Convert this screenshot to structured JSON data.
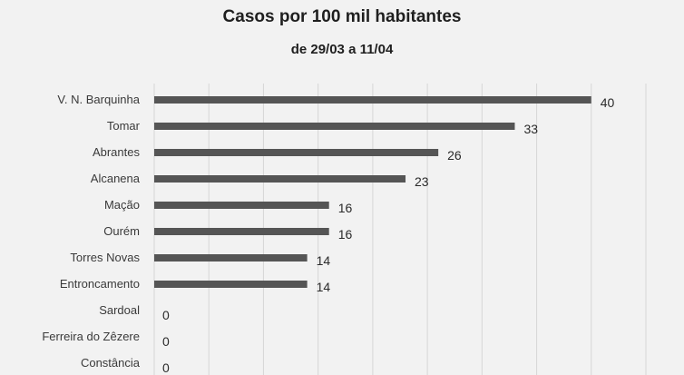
{
  "chart_data": {
    "type": "bar",
    "orientation": "horizontal",
    "title": "Casos por 100 mil habitantes",
    "subtitle": "de 29/03 a 11/04",
    "categories": [
      "V. N. Barquinha",
      "Tomar",
      "Abrantes",
      "Alcanena",
      "Mação",
      "Ourém",
      "Torres Novas",
      "Entroncamento",
      "Sardoal",
      "Ferreira do Zêzere",
      "Constância"
    ],
    "values": [
      40,
      33,
      26,
      23,
      16,
      16,
      14,
      14,
      0,
      0,
      0
    ],
    "xlim": [
      0,
      45
    ],
    "x_axis_visible": false,
    "grid": "vertical",
    "legend": "none",
    "colors": {
      "bar": "#555555",
      "grid": "#d6d6d6",
      "background": "#f2f2f2"
    }
  }
}
